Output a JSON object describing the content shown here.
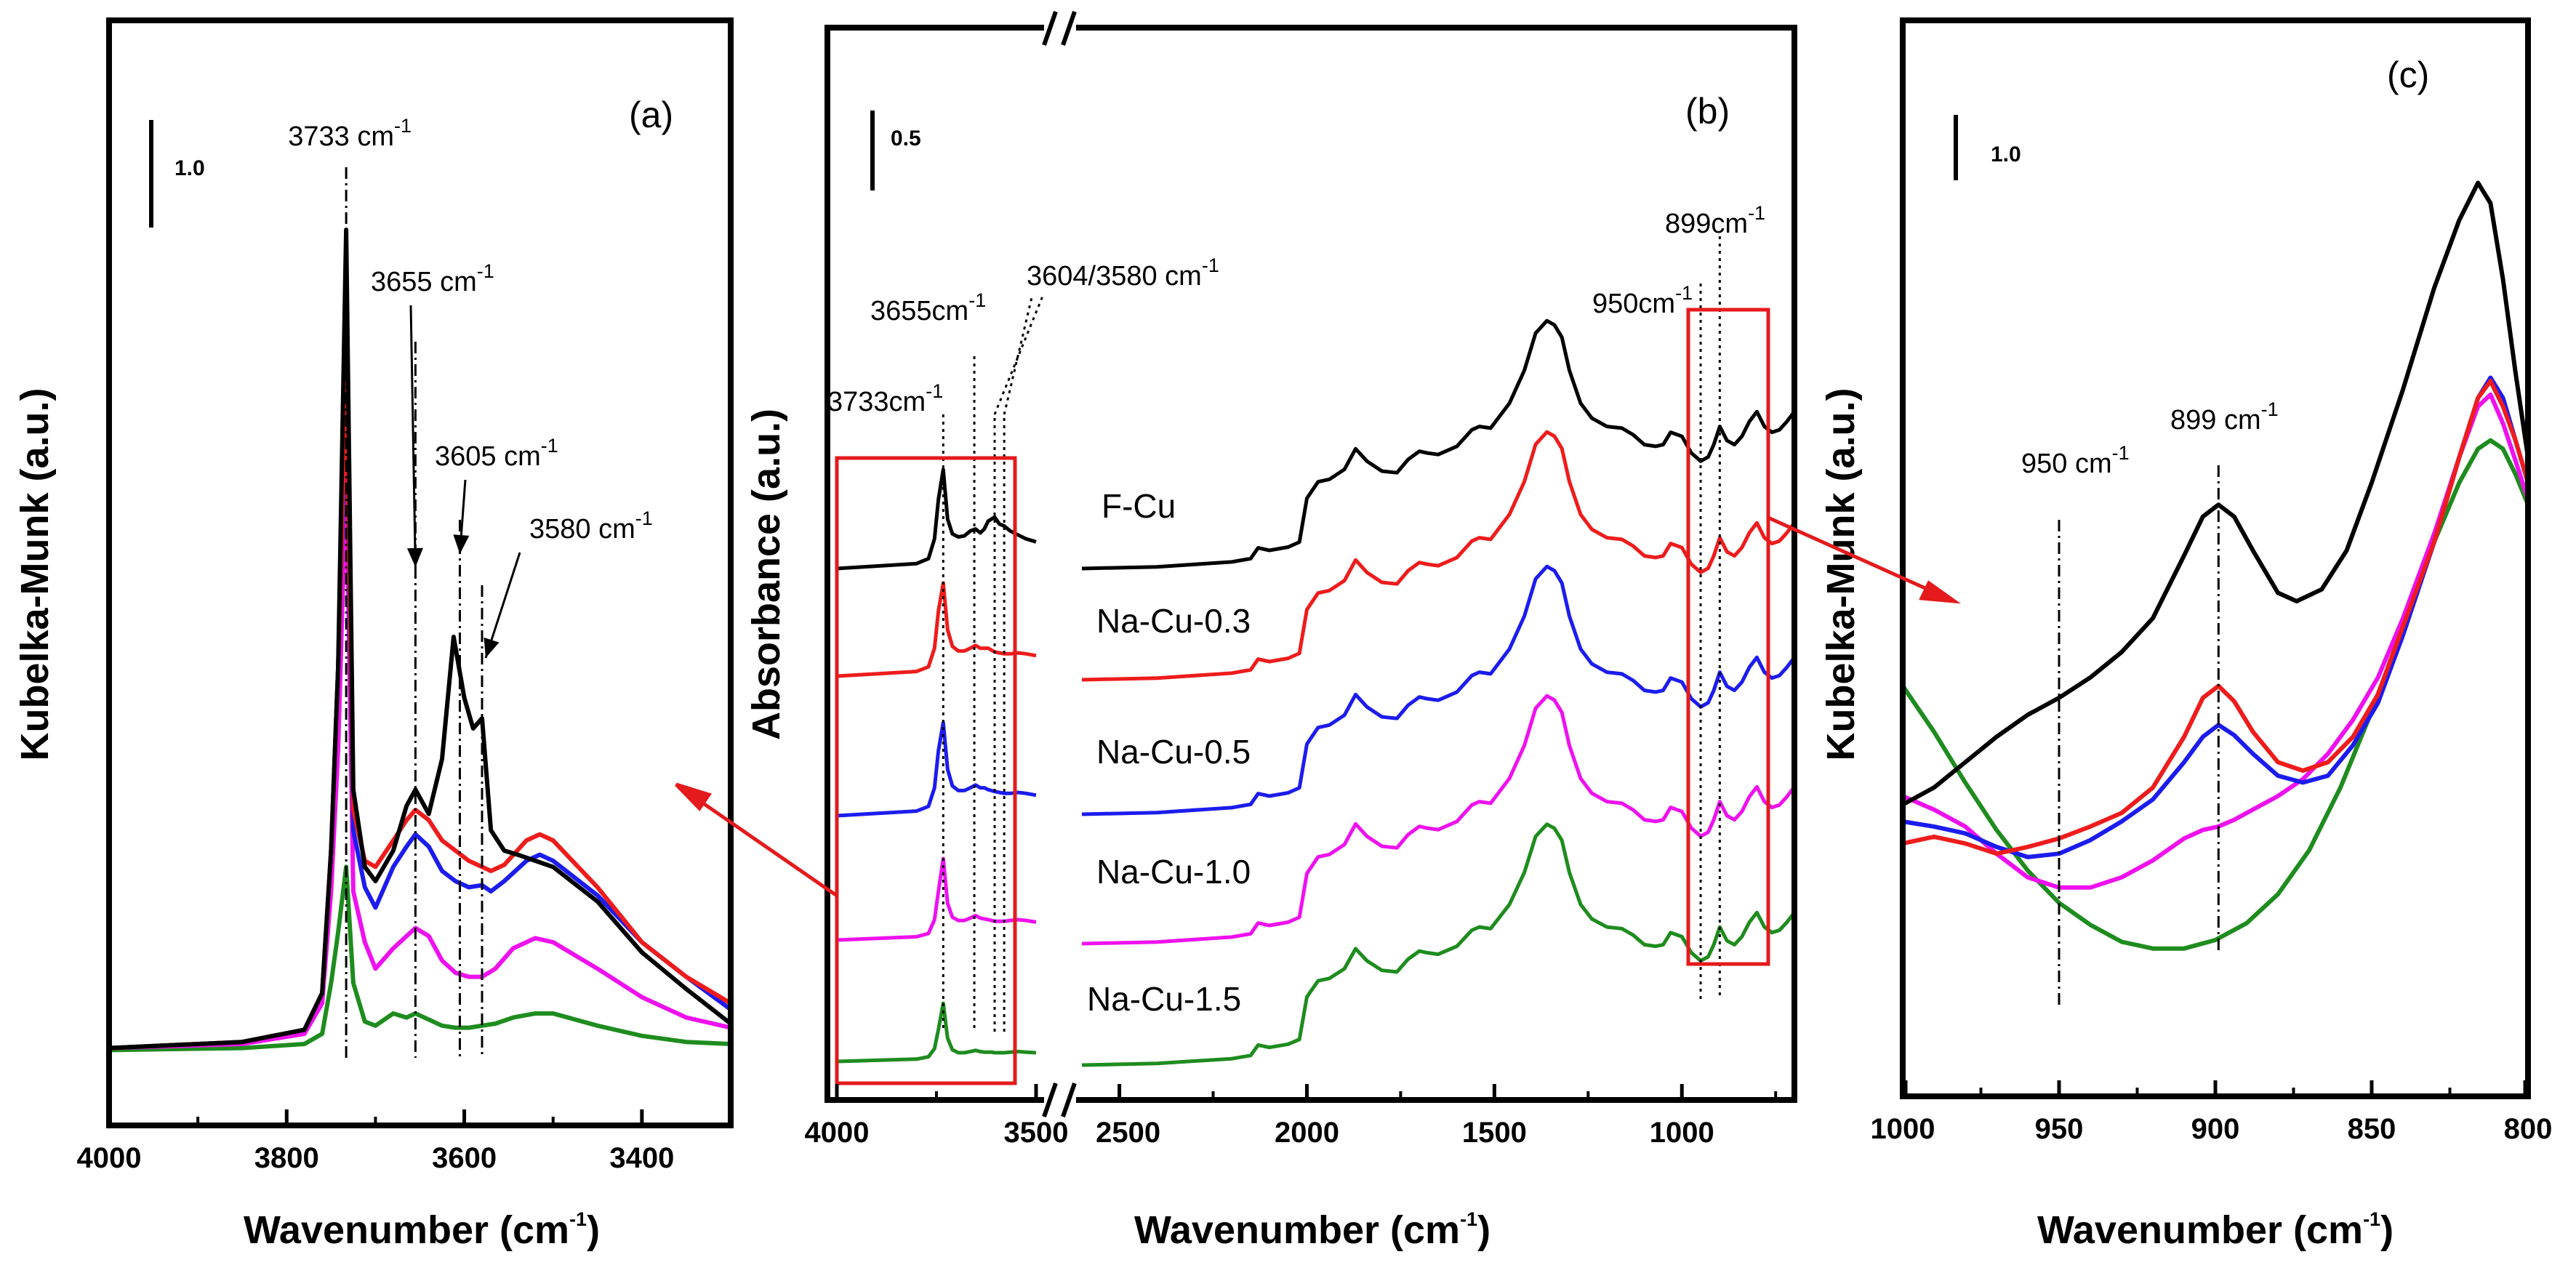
{
  "chart_data": [
    {
      "panel": "(a)",
      "type": "line",
      "xlabel": "Wavenumber (cm",
      "xlabel_sup": "-1",
      "ylabel": "Kubelka-Munk (a.u.)",
      "xlim": [
        4000,
        3300
      ],
      "ylim": [
        0,
        5.1
      ],
      "xticks": [
        4000,
        3800,
        3600,
        3400
      ],
      "scale_bar_label": "1.0",
      "scale_bar_units": 1.0,
      "annotations": [
        {
          "text": "3733 cm",
          "sup": "-1",
          "x": 3733
        },
        {
          "text": "3655 cm",
          "sup": "-1",
          "x": 3655
        },
        {
          "text": "3605 cm",
          "sup": "-1",
          "x": 3605
        },
        {
          "text": "3580 cm",
          "sup": "-1",
          "x": 3580
        }
      ],
      "series": [
        {
          "name": "F-Cu",
          "color": "#000000",
          "x": [
            4000,
            3850,
            3780,
            3760,
            3750,
            3742,
            3733,
            3725,
            3712,
            3700,
            3680,
            3665,
            3655,
            3640,
            3625,
            3612,
            3600,
            3590,
            3580,
            3570,
            3555,
            3540,
            3520,
            3500,
            3450,
            3400,
            3350,
            3300
          ],
          "y": [
            0.03,
            0.06,
            0.12,
            0.3,
            1.0,
            1.9,
            4.05,
            1.3,
            0.92,
            0.85,
            1.0,
            1.22,
            1.3,
            1.18,
            1.45,
            2.05,
            1.75,
            1.6,
            1.65,
            1.1,
            1.0,
            0.98,
            0.95,
            0.92,
            0.75,
            0.5,
            0.32,
            0.15
          ]
        },
        {
          "name": "Na-Cu-0.3",
          "color": "#ee1c1c",
          "x": [
            4000,
            3850,
            3780,
            3760,
            3750,
            3742,
            3733,
            3725,
            3712,
            3700,
            3680,
            3665,
            3655,
            3640,
            3625,
            3610,
            3595,
            3580,
            3570,
            3555,
            3530,
            3515,
            3500,
            3450,
            3400,
            3350,
            3300
          ],
          "y": [
            0.03,
            0.06,
            0.12,
            0.3,
            1.0,
            1.9,
            3.35,
            1.2,
            0.95,
            0.92,
            1.05,
            1.15,
            1.2,
            1.15,
            1.05,
            1.0,
            0.95,
            0.92,
            0.9,
            0.93,
            1.05,
            1.08,
            1.05,
            0.82,
            0.55,
            0.38,
            0.25
          ]
        },
        {
          "name": "Na-Cu-0.5",
          "color": "#1c1cee",
          "x": [
            4000,
            3850,
            3780,
            3760,
            3750,
            3742,
            3733,
            3725,
            3712,
            3700,
            3680,
            3665,
            3655,
            3640,
            3625,
            3610,
            3595,
            3580,
            3570,
            3555,
            3530,
            3515,
            3500,
            3450,
            3400,
            3350,
            3300
          ],
          "y": [
            0.03,
            0.06,
            0.12,
            0.3,
            1.0,
            1.9,
            3.2,
            1.1,
            0.82,
            0.72,
            0.92,
            1.02,
            1.08,
            1.02,
            0.9,
            0.85,
            0.82,
            0.83,
            0.8,
            0.85,
            0.95,
            0.98,
            0.95,
            0.78,
            0.55,
            0.38,
            0.22
          ]
        },
        {
          "name": "Na-Cu-1.0",
          "color": "#ee11ee",
          "x": [
            4000,
            3850,
            3780,
            3760,
            3750,
            3742,
            3733,
            3725,
            3712,
            3700,
            3680,
            3665,
            3655,
            3640,
            3625,
            3610,
            3595,
            3580,
            3565,
            3545,
            3520,
            3500,
            3450,
            3400,
            3350,
            3300
          ],
          "y": [
            0.03,
            0.05,
            0.1,
            0.25,
            0.8,
            1.5,
            2.85,
            0.8,
            0.55,
            0.42,
            0.52,
            0.58,
            0.62,
            0.58,
            0.46,
            0.4,
            0.38,
            0.38,
            0.42,
            0.52,
            0.57,
            0.55,
            0.42,
            0.28,
            0.18,
            0.13
          ]
        },
        {
          "name": "Na-Cu-1.5",
          "color": "#1e8c1e",
          "x": [
            4000,
            3850,
            3780,
            3760,
            3750,
            3742,
            3733,
            3725,
            3712,
            3700,
            3680,
            3665,
            3655,
            3640,
            3625,
            3610,
            3595,
            3580,
            3565,
            3545,
            3520,
            3500,
            3450,
            3400,
            3350,
            3300
          ],
          "y": [
            0.02,
            0.03,
            0.05,
            0.1,
            0.35,
            0.6,
            0.92,
            0.35,
            0.16,
            0.14,
            0.2,
            0.18,
            0.2,
            0.17,
            0.14,
            0.13,
            0.13,
            0.14,
            0.15,
            0.18,
            0.2,
            0.2,
            0.14,
            0.09,
            0.06,
            0.05
          ]
        }
      ]
    },
    {
      "panel": "(b)",
      "type": "line",
      "xlabel": "Wavenumber (cm",
      "xlabel_sup": "-1",
      "ylabel": "Absorbance (a.u.)",
      "broken_axis": {
        "left": [
          4000,
          3500
        ],
        "right": [
          2600,
          700
        ]
      },
      "xticks_left": [
        4000,
        3500
      ],
      "xticks_right": [
        2500,
        2000,
        1500,
        1000
      ],
      "scale_bar_label": "0.5",
      "scale_bar_units": 0.5,
      "annotations": [
        {
          "text": "3733cm",
          "sup": "-1",
          "x": 3733
        },
        {
          "text": "3655cm",
          "sup": "-1",
          "x": 3655
        },
        {
          "text": "3604/3580 cm",
          "sup": "-1",
          "x": 3604
        },
        {
          "text": "950cm",
          "sup": "-1",
          "x": 950
        },
        {
          "text": "899cm",
          "sup": "-1",
          "x": 899
        }
      ],
      "series_labels": [
        "F-Cu",
        "Na-Cu-0.3",
        "Na-Cu-0.5",
        "Na-Cu-1.0",
        "Na-Cu-1.5"
      ],
      "series_colors": [
        "#000000",
        "#ee1c1c",
        "#1c1cee",
        "#ee11ee",
        "#1e8c1e"
      ],
      "segment_left_x": [
        4000,
        3800,
        3770,
        3755,
        3745,
        3733,
        3722,
        3710,
        3695,
        3680,
        3665,
        3652,
        3640,
        3630,
        3620,
        3612,
        3604,
        3592,
        3580,
        3565,
        3545,
        3525,
        3500
      ],
      "segment_left_profiles": [
        [
          0,
          0.05,
          0.1,
          0.3,
          0.7,
          1.0,
          0.5,
          0.35,
          0.32,
          0.33,
          0.38,
          0.4,
          0.36,
          0.4,
          0.48,
          0.5,
          0.52,
          0.45,
          0.43,
          0.38,
          0.34,
          0.3,
          0.27
        ],
        [
          0,
          0.05,
          0.1,
          0.3,
          0.7,
          1.0,
          0.5,
          0.32,
          0.27,
          0.27,
          0.3,
          0.33,
          0.3,
          0.3,
          0.3,
          0.28,
          0.26,
          0.25,
          0.24,
          0.24,
          0.25,
          0.24,
          0.22
        ],
        [
          0,
          0.05,
          0.1,
          0.3,
          0.7,
          1.0,
          0.5,
          0.32,
          0.27,
          0.27,
          0.3,
          0.33,
          0.3,
          0.3,
          0.28,
          0.27,
          0.26,
          0.25,
          0.24,
          0.24,
          0.25,
          0.24,
          0.22
        ],
        [
          0,
          0.04,
          0.08,
          0.25,
          0.6,
          1.0,
          0.45,
          0.28,
          0.24,
          0.24,
          0.27,
          0.3,
          0.27,
          0.26,
          0.25,
          0.24,
          0.23,
          0.23,
          0.23,
          0.24,
          0.25,
          0.24,
          0.22
        ],
        [
          0,
          0.04,
          0.08,
          0.22,
          0.55,
          1.0,
          0.4,
          0.2,
          0.15,
          0.15,
          0.17,
          0.19,
          0.17,
          0.16,
          0.16,
          0.16,
          0.15,
          0.15,
          0.15,
          0.16,
          0.17,
          0.16,
          0.15
        ]
      ],
      "segment_left_amplitude": [
        0.85,
        0.8,
        0.8,
        0.7,
        0.5
      ],
      "segment_right_x": [
        2600,
        2400,
        2200,
        2150,
        2130,
        2100,
        2050,
        2020,
        2000,
        1970,
        1940,
        1900,
        1870,
        1840,
        1800,
        1760,
        1730,
        1700,
        1680,
        1650,
        1600,
        1560,
        1540,
        1510,
        1460,
        1420,
        1390,
        1360,
        1340,
        1320,
        1300,
        1270,
        1240,
        1200,
        1160,
        1130,
        1100,
        1070,
        1050,
        1030,
        1000,
        975,
        950,
        930,
        915,
        899,
        880,
        860,
        840,
        820,
        800,
        780,
        760,
        740,
        720,
        700
      ],
      "segment_right_profile": [
        0,
        0.02,
        0.08,
        0.12,
        0.25,
        0.22,
        0.26,
        0.32,
        0.85,
        1.05,
        1.08,
        1.2,
        1.45,
        1.3,
        1.18,
        1.16,
        1.32,
        1.42,
        1.4,
        1.38,
        1.48,
        1.68,
        1.72,
        1.7,
        2.0,
        2.4,
        2.85,
        3.0,
        2.95,
        2.8,
        2.4,
        2.0,
        1.82,
        1.72,
        1.7,
        1.62,
        1.5,
        1.48,
        1.5,
        1.65,
        1.6,
        1.4,
        1.3,
        1.35,
        1.5,
        1.72,
        1.55,
        1.5,
        1.6,
        1.78,
        1.9,
        1.72,
        1.65,
        1.68,
        1.78,
        1.9
      ],
      "segment_right_amplitude": [
        0.71,
        0.71,
        0.71,
        0.71,
        0.69
      ]
    },
    {
      "panel": "(c)",
      "type": "line",
      "xlabel": "Wavenumber (cm",
      "xlabel_sup": "-1",
      "ylabel": "Kubelka-Munk (a.u.)",
      "xlim": [
        1000,
        800
      ],
      "ylim": [
        0,
        4.9
      ],
      "xticks": [
        1000,
        950,
        900,
        850,
        800
      ],
      "scale_bar_label": "1.0",
      "scale_bar_units": 1.0,
      "annotations": [
        {
          "text": "950 cm",
          "sup": "-1",
          "x": 950
        },
        {
          "text": "899 cm",
          "sup": "-1",
          "x": 899
        }
      ],
      "series": [
        {
          "name": "F-Cu",
          "color": "#000000",
          "x": [
            1000,
            990,
            980,
            970,
            960,
            950,
            940,
            930,
            920,
            910,
            904,
            899,
            894,
            888,
            880,
            874,
            866,
            858,
            850,
            840,
            830,
            822,
            816,
            812,
            808,
            804,
            800
          ],
          "y": [
            0.95,
            1.05,
            1.2,
            1.35,
            1.48,
            1.58,
            1.7,
            1.85,
            2.05,
            2.42,
            2.65,
            2.72,
            2.65,
            2.45,
            2.2,
            2.15,
            2.22,
            2.45,
            2.85,
            3.4,
            4.0,
            4.4,
            4.62,
            4.5,
            4.05,
            3.5,
            3.0
          ]
        },
        {
          "name": "Na-Cu-0.3",
          "color": "#ee1c1c",
          "x": [
            1000,
            990,
            980,
            970,
            960,
            950,
            940,
            930,
            920,
            910,
            904,
            899,
            894,
            888,
            880,
            872,
            864,
            856,
            848,
            840,
            830,
            822,
            816,
            812,
            808,
            804,
            800
          ],
          "y": [
            0.72,
            0.76,
            0.72,
            0.66,
            0.7,
            0.75,
            0.82,
            0.9,
            1.05,
            1.35,
            1.58,
            1.65,
            1.56,
            1.38,
            1.2,
            1.15,
            1.2,
            1.35,
            1.6,
            2.0,
            2.5,
            3.0,
            3.35,
            3.45,
            3.3,
            3.1,
            2.85
          ]
        },
        {
          "name": "Na-Cu-0.5",
          "color": "#1c1cee",
          "x": [
            1000,
            990,
            980,
            970,
            960,
            950,
            940,
            930,
            920,
            910,
            904,
            899,
            894,
            888,
            880,
            872,
            864,
            856,
            848,
            840,
            830,
            822,
            816,
            812,
            808,
            804,
            800
          ],
          "y": [
            0.85,
            0.82,
            0.78,
            0.7,
            0.64,
            0.66,
            0.74,
            0.85,
            0.98,
            1.2,
            1.35,
            1.42,
            1.36,
            1.25,
            1.12,
            1.08,
            1.12,
            1.3,
            1.55,
            1.95,
            2.5,
            3.0,
            3.35,
            3.47,
            3.35,
            3.1,
            2.85
          ]
        },
        {
          "name": "Na-Cu-1.0",
          "color": "#ee11ee",
          "x": [
            1000,
            990,
            980,
            970,
            960,
            950,
            940,
            930,
            920,
            910,
            904,
            899,
            894,
            888,
            880,
            872,
            864,
            856,
            848,
            840,
            830,
            822,
            816,
            812,
            808,
            804,
            800
          ],
          "y": [
            1.0,
            0.92,
            0.82,
            0.66,
            0.52,
            0.46,
            0.46,
            0.52,
            0.62,
            0.75,
            0.8,
            0.82,
            0.86,
            0.92,
            1.0,
            1.1,
            1.25,
            1.45,
            1.7,
            2.05,
            2.55,
            3.0,
            3.3,
            3.37,
            3.2,
            2.98,
            2.75
          ]
        },
        {
          "name": "Na-Cu-1.5",
          "color": "#1e8c1e",
          "x": [
            1000,
            990,
            980,
            970,
            960,
            950,
            940,
            930,
            920,
            910,
            900,
            890,
            880,
            870,
            860,
            850,
            840,
            830,
            822,
            816,
            812,
            808,
            804,
            800
          ],
          "y": [
            1.65,
            1.38,
            1.08,
            0.8,
            0.56,
            0.37,
            0.24,
            0.14,
            0.1,
            0.1,
            0.15,
            0.25,
            0.42,
            0.68,
            1.05,
            1.5,
            2.0,
            2.5,
            2.85,
            3.05,
            3.1,
            3.05,
            2.9,
            2.72
          ]
        }
      ]
    }
  ]
}
